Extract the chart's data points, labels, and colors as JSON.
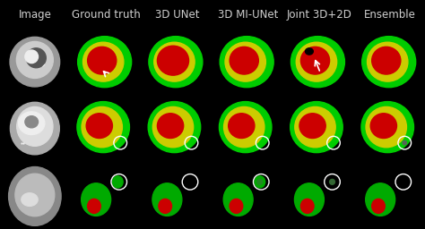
{
  "title": "",
  "col_headers": [
    "Image",
    "Ground truth",
    "3D UNet",
    "3D MI-UNet",
    "Joint 3D+2D",
    "Ensemble"
  ],
  "n_rows": 3,
  "n_cols": 6,
  "bg_color": "#000000",
  "header_color": "#d0d0d0",
  "header_fontsize": 8.5,
  "fig_width": 4.74,
  "fig_height": 2.56,
  "dpi": 100
}
